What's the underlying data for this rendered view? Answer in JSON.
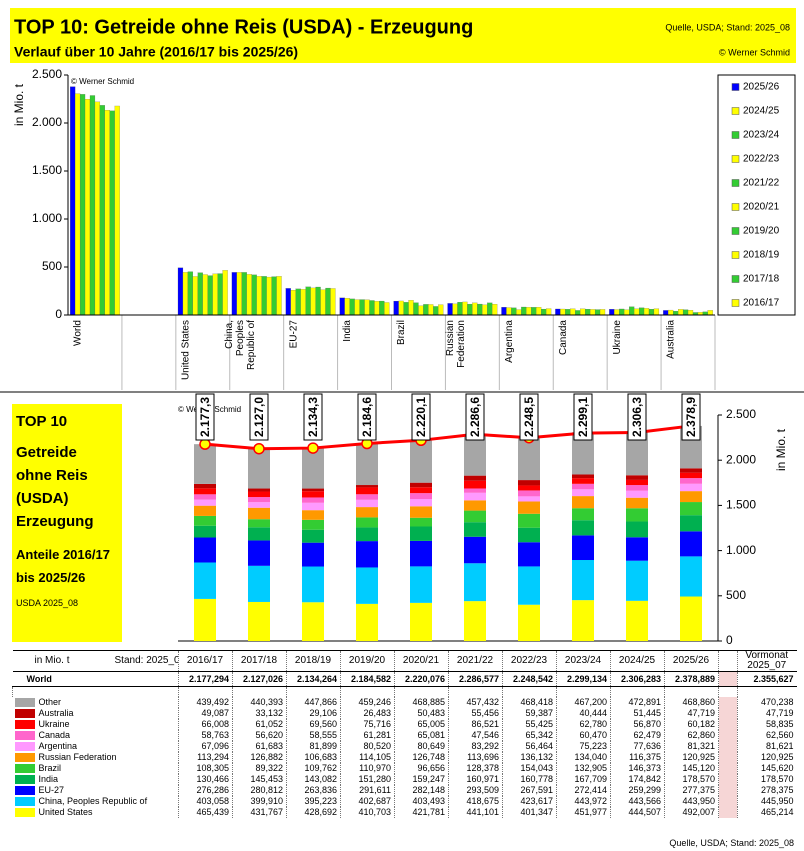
{
  "header": {
    "title": "TOP 10:  Getreide ohne Reis (USDA) - Erzeugung",
    "subtitle": "Verlauf über 10 Jahre (2016/17 bis 2025/26)",
    "source": "Quelle, USDA;  Stand: 2025_08",
    "copyright": "© Werner Schmid"
  },
  "panel": {
    "lines": [
      "TOP 10",
      "Getreide ohne Reis (USDA)",
      "Erzeugung",
      "Anteile 2016/17 bis 2025/26"
    ],
    "note": "USDA 2025_08"
  },
  "chart_data": [
    {
      "type": "bar",
      "copyright": "© Werner Schmid",
      "ylabel": "in Mio. t",
      "categories": [
        "World",
        "United States",
        "China, Peoples Republic of",
        "EU-27",
        "India",
        "Brazil",
        "Russian Federation",
        "Argentina",
        "Canada",
        "Ukraine",
        "Australia"
      ],
      "ylim": [
        0,
        2500
      ],
      "yticks": [
        0,
        500,
        {
          "value": 1000,
          "label": "1.000"
        },
        {
          "value": 1500,
          "label": "1.500"
        },
        {
          "value": 2000,
          "label": "2.000"
        },
        {
          "value": 2500,
          "label": "2.500"
        }
      ],
      "series": [
        {
          "name": "2025/26",
          "color": "#0000ff",
          "values": [
            2378.889,
            492.007,
            443.95,
            277.375,
            178.57,
            145.12,
            120.925,
            81.321,
            62.86,
            60.182,
            47.719
          ]
        },
        {
          "name": "2024/25",
          "color": "#ffff00",
          "values": [
            2306.283,
            444.507,
            443.566,
            259.299,
            174.842,
            146.373,
            116.375,
            77.636,
            62.479,
            56.87,
            51.445
          ]
        },
        {
          "name": "2023/24",
          "color": "#33cc33",
          "values": [
            2299.134,
            451.977,
            443.972,
            272.414,
            167.709,
            132.905,
            134.04,
            75.223,
            60.47,
            62.78,
            40.444
          ]
        },
        {
          "name": "2022/23",
          "color": "#ffff00",
          "values": [
            2248.542,
            401.347,
            423.617,
            267.591,
            160.778,
            154.043,
            136.132,
            56.464,
            65.342,
            55.425,
            59.387
          ]
        },
        {
          "name": "2021/22",
          "color": "#33cc33",
          "values": [
            2286.577,
            441.101,
            418.675,
            293.509,
            160.971,
            128.378,
            113.696,
            83.292,
            47.546,
            86.521,
            55.456
          ]
        },
        {
          "name": "2020/21",
          "color": "#ffff00",
          "values": [
            2220.076,
            421.781,
            403.493,
            282.148,
            159.247,
            96.656,
            126.748,
            80.649,
            65.081,
            65.005,
            50.483
          ]
        },
        {
          "name": "2019/20",
          "color": "#33cc33",
          "values": [
            2184.582,
            410.703,
            402.687,
            291.611,
            151.28,
            110.97,
            114.105,
            80.52,
            61.281,
            75.716,
            26.483
          ]
        },
        {
          "name": "2018/19",
          "color": "#ffff00",
          "values": [
            2134.264,
            428.692,
            395.223,
            263.836,
            143.082,
            109.762,
            106.683,
            81.899,
            58.555,
            69.56,
            29.106
          ]
        },
        {
          "name": "2017/18",
          "color": "#33cc33",
          "values": [
            2127.026,
            431.767,
            399.91,
            280.812,
            145.453,
            89.322,
            126.882,
            61.683,
            56.62,
            61.052,
            33.132
          ]
        },
        {
          "name": "2016/17",
          "color": "#ffff00",
          "values": [
            2177.294,
            465.439,
            403.058,
            276.286,
            130.466,
            108.305,
            113.294,
            67.096,
            58.763,
            66.008,
            49.087
          ]
        }
      ]
    },
    {
      "type": "stacked_bar",
      "copyright": "© Werner Schmid",
      "ylabel": "in Mio. t",
      "categories": [
        "2016/17",
        "2017/18",
        "2018/19",
        "2019/20",
        "2020/21",
        "2021/22",
        "2022/23",
        "2023/24",
        "2024/25",
        "2025/26"
      ],
      "ylim": [
        0,
        2500
      ],
      "yticks": [
        0,
        500,
        {
          "value": 1000,
          "label": "1.000"
        },
        {
          "value": 1500,
          "label": "1.500"
        },
        {
          "value": 2000,
          "label": "2.000"
        },
        {
          "value": 2500,
          "label": "2.500"
        }
      ],
      "series": [
        {
          "name": "United States",
          "color": "#ffff00",
          "values": [
            465.439,
            431.767,
            428.692,
            410.703,
            421.781,
            441.101,
            401.347,
            451.977,
            444.507,
            492.007
          ],
          "value_labels": [
            "465,439",
            "431,767",
            "428,692",
            "410,703",
            "421,781",
            "441,101",
            "401,347",
            "451,977",
            "444,507",
            "492,007"
          ],
          "previous_label": "465,214"
        },
        {
          "name": "China, Peoples Republic of",
          "color": "#00ccff",
          "values": [
            403.058,
            399.91,
            395.223,
            402.687,
            403.493,
            418.675,
            423.617,
            443.972,
            443.566,
            443.95
          ],
          "value_labels": [
            "403,058",
            "399,910",
            "395,223",
            "402,687",
            "403,493",
            "418,675",
            "423,617",
            "443,972",
            "443,566",
            "443,950"
          ],
          "previous_label": "445,950"
        },
        {
          "name": "EU-27",
          "color": "#0000ff",
          "values": [
            276.286,
            280.812,
            263.836,
            291.611,
            282.148,
            293.509,
            267.591,
            272.414,
            259.299,
            277.375
          ],
          "value_labels": [
            "276,286",
            "280,812",
            "263,836",
            "291,611",
            "282,148",
            "293,509",
            "267,591",
            "272,414",
            "259,299",
            "277,375"
          ],
          "previous_label": "278,375"
        },
        {
          "name": "India",
          "color": "#00b050",
          "values": [
            130.466,
            145.453,
            143.082,
            151.28,
            159.247,
            160.971,
            160.778,
            167.709,
            174.842,
            178.57
          ],
          "value_labels": [
            "130,466",
            "145,453",
            "143,082",
            "151,280",
            "159,247",
            "160,971",
            "160,778",
            "167,709",
            "174,842",
            "178,570"
          ],
          "previous_label": "178,570"
        },
        {
          "name": "Brazil",
          "color": "#33cc33",
          "values": [
            108.305,
            89.322,
            109.762,
            110.97,
            96.656,
            128.378,
            154.043,
            132.905,
            146.373,
            145.12
          ],
          "value_labels": [
            "108,305",
            "89,322",
            "109,762",
            "110,970",
            "96,656",
            "128,378",
            "154,043",
            "132,905",
            "146,373",
            "145,120"
          ],
          "previous_label": "145,620"
        },
        {
          "name": "Russian Federation",
          "color": "#ff9900",
          "values": [
            113.294,
            126.882,
            106.683,
            114.105,
            126.748,
            113.696,
            136.132,
            134.04,
            116.375,
            120.925
          ],
          "value_labels": [
            "113,294",
            "126,882",
            "106,683",
            "114,105",
            "126,748",
            "113,696",
            "136,132",
            "134,040",
            "116,375",
            "120,925"
          ],
          "previous_label": "120,925"
        },
        {
          "name": "Argentina",
          "color": "#ff99ff",
          "values": [
            67.096,
            61.683,
            81.899,
            80.52,
            80.649,
            83.292,
            56.464,
            75.223,
            77.636,
            81.321
          ],
          "value_labels": [
            "67,096",
            "61,683",
            "81,899",
            "80,520",
            "80,649",
            "83,292",
            "56,464",
            "75,223",
            "77,636",
            "81,321"
          ],
          "previous_label": "81,621"
        },
        {
          "name": "Canada",
          "color": "#ff66cc",
          "values": [
            58.763,
            56.62,
            58.555,
            61.281,
            65.081,
            47.546,
            65.342,
            60.47,
            62.479,
            62.86
          ],
          "value_labels": [
            "58,763",
            "56,620",
            "58,555",
            "61,281",
            "65,081",
            "47,546",
            "65,342",
            "60,470",
            "62,479",
            "62,860"
          ],
          "previous_label": "62,560"
        },
        {
          "name": "Ukraine",
          "color": "#ff0000",
          "values": [
            66.008,
            61.052,
            69.56,
            75.716,
            65.005,
            86.521,
            55.425,
            62.78,
            56.87,
            60.182
          ],
          "value_labels": [
            "66,008",
            "61,052",
            "69,560",
            "75,716",
            "65,005",
            "86,521",
            "55,425",
            "62,780",
            "56,870",
            "60,182"
          ],
          "previous_label": "58,835"
        },
        {
          "name": "Australia",
          "color": "#c00000",
          "values": [
            49.087,
            33.132,
            29.106,
            26.483,
            50.483,
            55.456,
            59.387,
            40.444,
            51.445,
            47.719
          ],
          "value_labels": [
            "49,087",
            "33,132",
            "29,106",
            "26,483",
            "50,483",
            "55,456",
            "59,387",
            "40,444",
            "51,445",
            "47,719"
          ],
          "previous_label": "47,719"
        },
        {
          "name": "Other",
          "color": "#a6a6a6",
          "values": [
            439.492,
            440.393,
            447.866,
            459.246,
            468.885,
            457.432,
            468.418,
            467.2,
            472.891,
            468.86
          ],
          "value_labels": [
            "439,492",
            "440,393",
            "447,866",
            "459,246",
            "468,885",
            "457,432",
            "468,418",
            "467,200",
            "472,891",
            "468,860"
          ],
          "previous_label": "470,238"
        }
      ],
      "line": {
        "name": "World",
        "color": "#ff0000",
        "values": [
          2177.294,
          2127.026,
          2134.264,
          2184.582,
          2220.076,
          2286.577,
          2248.542,
          2299.134,
          2306.283,
          2378.889
        ],
        "value_labels": [
          "2.177,3",
          "2.127,0",
          "2.134,3",
          "2.184,6",
          "2.220,1",
          "2.286,6",
          "2.248,5",
          "2.299,1",
          "2.306,3",
          "2.378,9"
        ],
        "table_labels": [
          "2.177,294",
          "2.127,026",
          "2.134,264",
          "2.184,582",
          "2.220,076",
          "2.286,577",
          "2.248,542",
          "2.299,134",
          "2.306,283",
          "2.378,889"
        ],
        "previous_label": "2.355,627"
      }
    }
  ],
  "table": {
    "unit": "in Mio. t",
    "stand": "Stand: 2025_08",
    "previous_header": "Vormonat 2025_07"
  }
}
